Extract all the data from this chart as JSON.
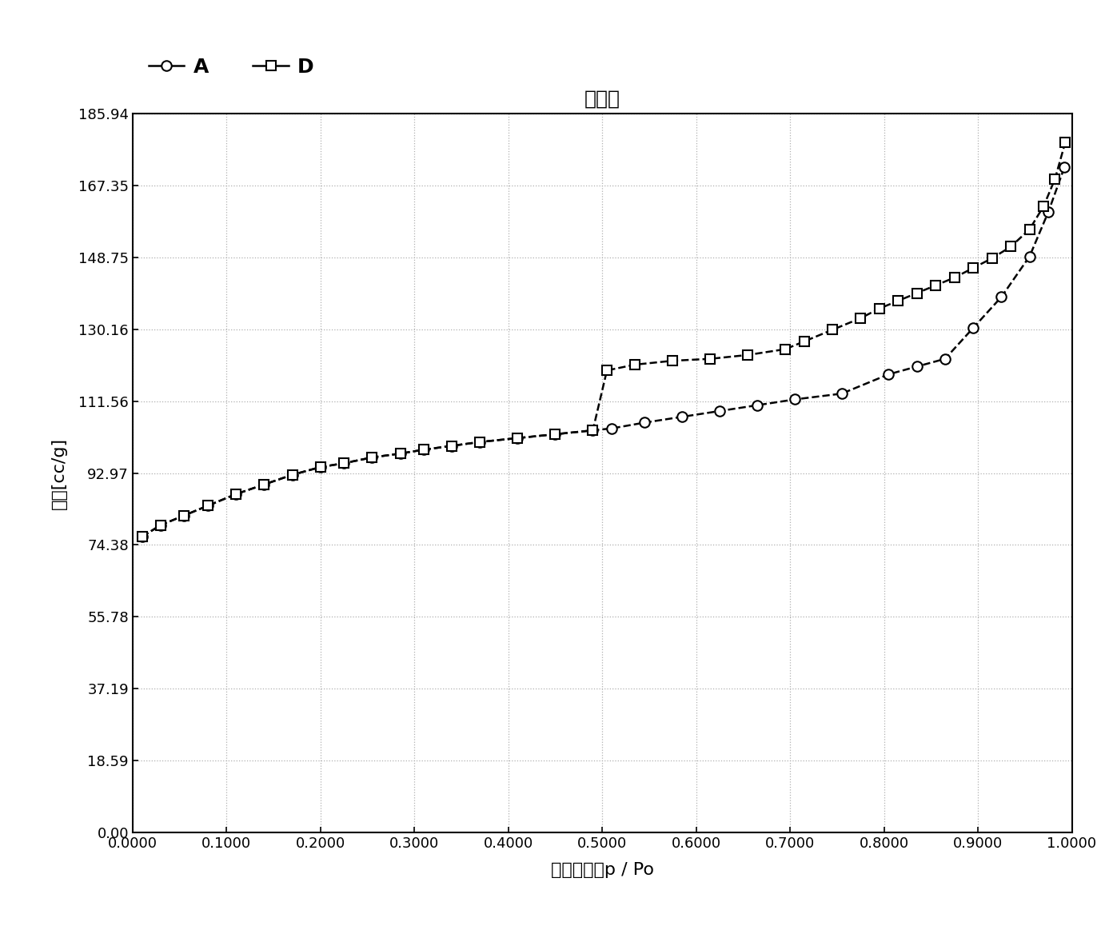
{
  "title": "等温线",
  "xlabel": "相对压力，p / Po",
  "ylabel": "体积[cc/g]",
  "legend_A": "A",
  "legend_D": "D",
  "yticks": [
    0.0,
    18.59,
    37.19,
    55.78,
    74.38,
    92.97,
    111.56,
    130.16,
    148.75,
    167.35,
    185.94
  ],
  "xticks": [
    0.0,
    0.1,
    0.2,
    0.3,
    0.4,
    0.5,
    0.6,
    0.7,
    0.8,
    0.9,
    1.0
  ],
  "xlim": [
    0.0,
    1.0
  ],
  "ylim": [
    0.0,
    185.94
  ],
  "series_A": {
    "x": [
      0.01,
      0.03,
      0.055,
      0.08,
      0.11,
      0.14,
      0.17,
      0.2,
      0.225,
      0.255,
      0.285,
      0.31,
      0.34,
      0.37,
      0.41,
      0.45,
      0.49,
      0.51,
      0.545,
      0.585,
      0.625,
      0.665,
      0.705,
      0.755,
      0.805,
      0.835,
      0.865,
      0.895,
      0.925,
      0.955,
      0.975,
      0.992
    ],
    "y": [
      76.5,
      79.5,
      82.0,
      84.5,
      87.5,
      90.0,
      92.5,
      94.5,
      95.5,
      97.0,
      98.0,
      99.0,
      100.0,
      101.0,
      102.0,
      103.0,
      104.0,
      104.5,
      106.0,
      107.5,
      109.0,
      110.5,
      112.0,
      113.5,
      118.5,
      120.5,
      122.5,
      130.5,
      138.5,
      149.0,
      160.5,
      172.0
    ]
  },
  "series_D": {
    "x": [
      0.01,
      0.03,
      0.055,
      0.08,
      0.11,
      0.14,
      0.17,
      0.2,
      0.225,
      0.255,
      0.285,
      0.31,
      0.34,
      0.37,
      0.41,
      0.45,
      0.49,
      0.505,
      0.535,
      0.575,
      0.615,
      0.655,
      0.695,
      0.715,
      0.745,
      0.775,
      0.795,
      0.815,
      0.835,
      0.855,
      0.875,
      0.895,
      0.915,
      0.935,
      0.955,
      0.97,
      0.982,
      0.993
    ],
    "y": [
      76.5,
      79.5,
      82.0,
      84.5,
      87.5,
      90.0,
      92.5,
      94.5,
      95.5,
      97.0,
      98.0,
      99.0,
      100.0,
      101.0,
      102.0,
      103.0,
      104.0,
      119.5,
      121.0,
      122.0,
      122.5,
      123.5,
      125.0,
      127.0,
      130.0,
      133.0,
      135.5,
      137.5,
      139.5,
      141.5,
      143.5,
      146.0,
      148.5,
      151.5,
      156.0,
      162.0,
      169.0,
      178.5
    ]
  },
  "line_color": "#000000",
  "bg_color": "#ffffff",
  "grid_color": "#b0b0b0",
  "title_fontsize": 18,
  "label_fontsize": 16,
  "tick_fontsize": 13,
  "legend_fontsize": 16
}
